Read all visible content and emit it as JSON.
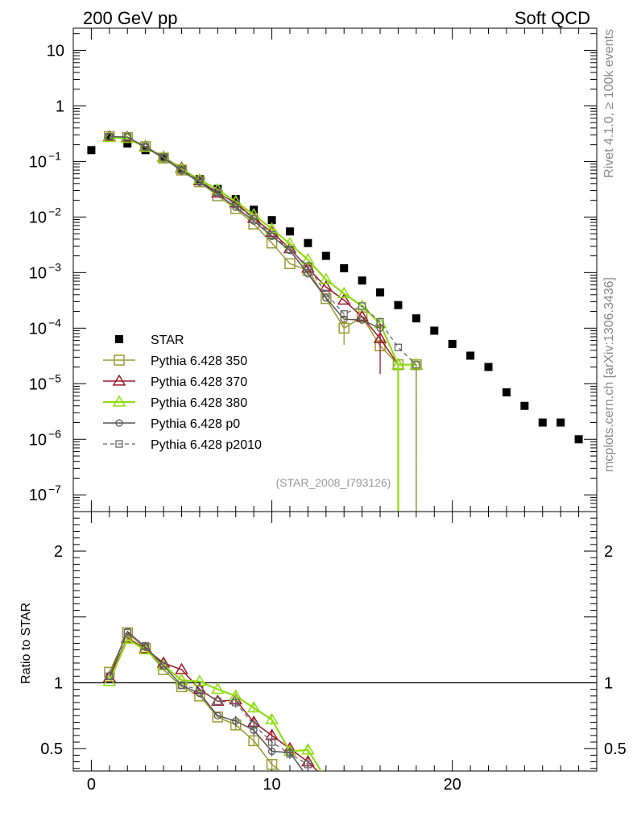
{
  "header": {
    "left": "200 GeV pp",
    "right": "Soft QCD"
  },
  "side": {
    "rivet": "Rivet 4.1.0, ≥ 100k events",
    "mcplots": "mcplots.cern.ch [arXiv:1306.3436]"
  },
  "analysis_tag": "(STAR_2008_I793126)",
  "colors": {
    "star": "#000000",
    "p350": "#9a9a33",
    "p370": "#a0182c",
    "p380": "#8fdc10",
    "p0": "#555555",
    "p2010": "#666666"
  },
  "chart_data": [
    {
      "type": "scatter",
      "panel": "main",
      "title": "",
      "xlabel": "",
      "ylabel": "",
      "xlim": [
        -1,
        28
      ],
      "ylim": [
        5e-08,
        25
      ],
      "yscale": "log",
      "y_ticks": [
        {
          "v": 10,
          "label": "10"
        },
        {
          "v": 1,
          "label": "1"
        },
        {
          "v": 0.1,
          "label": "10",
          "exp": "−1"
        },
        {
          "v": 0.01,
          "label": "10",
          "exp": "−2"
        },
        {
          "v": 0.001,
          "label": "10",
          "exp": "−3"
        },
        {
          "v": 0.0001,
          "label": "10",
          "exp": "−4"
        },
        {
          "v": 1e-05,
          "label": "10",
          "exp": "−5"
        },
        {
          "v": 1e-06,
          "label": "10",
          "exp": "−6"
        },
        {
          "v": 1e-07,
          "label": "10",
          "exp": "−7"
        }
      ],
      "legend": [
        {
          "key": "star",
          "label": "STAR"
        },
        {
          "key": "p350",
          "label": "Pythia 6.428 350"
        },
        {
          "key": "p370",
          "label": "Pythia 6.428 370"
        },
        {
          "key": "p380",
          "label": "Pythia 6.428 380"
        },
        {
          "key": "p0",
          "label": "Pythia 6.428 p0"
        },
        {
          "key": "p2010",
          "label": "Pythia 6.428 p2010"
        }
      ],
      "series": [
        {
          "key": "star",
          "name": "STAR",
          "x": [
            0,
            1,
            2,
            3,
            4,
            5,
            6,
            7,
            8,
            9,
            10,
            11,
            12,
            13,
            14,
            15,
            16,
            17,
            18,
            19,
            20,
            21,
            22,
            23,
            24,
            25,
            26,
            27
          ],
          "y": [
            0.16,
            0.27,
            0.21,
            0.16,
            0.115,
            0.072,
            0.048,
            0.032,
            0.021,
            0.0135,
            0.0088,
            0.0055,
            0.0034,
            0.002,
            0.0012,
            0.00072,
            0.00044,
            0.00026,
            0.00015,
            9e-05,
            5.2e-05,
            3.2e-05,
            2e-05,
            7e-06,
            4e-06,
            2e-06,
            2e-06,
            1e-06
          ]
        },
        {
          "key": "p350",
          "name": "Pythia 6.428 350",
          "x": [
            1,
            2,
            3,
            4,
            5,
            6,
            7,
            8,
            9,
            10,
            11,
            12,
            13,
            14,
            15,
            16,
            17,
            18
          ],
          "y": [
            0.28,
            0.27,
            0.185,
            0.115,
            0.07,
            0.043,
            0.024,
            0.0142,
            0.0075,
            0.0034,
            0.00145,
            0.0011,
            0.00034,
            0.0001,
            0.00016,
            4.8e-05,
            2.2e-05,
            2.2e-05
          ]
        },
        {
          "key": "p370",
          "name": "Pythia 6.428 370",
          "x": [
            1,
            2,
            3,
            4,
            5,
            6,
            7,
            8,
            9,
            10,
            11,
            12,
            13,
            14,
            15,
            16,
            17,
            18
          ],
          "y": [
            0.28,
            0.27,
            0.185,
            0.12,
            0.076,
            0.045,
            0.027,
            0.018,
            0.0095,
            0.0053,
            0.0027,
            0.0012,
            0.00055,
            0.00032,
            0.00016,
            6.5e-05,
            2.2e-05,
            2.2e-05
          ]
        },
        {
          "key": "p380",
          "name": "Pythia 6.428 380",
          "x": [
            1,
            2,
            3,
            4,
            5,
            6,
            7,
            8,
            9,
            10,
            11,
            12,
            13,
            14,
            15,
            16,
            17,
            18
          ],
          "y": [
            0.27,
            0.26,
            0.18,
            0.118,
            0.073,
            0.047,
            0.031,
            0.019,
            0.011,
            0.0061,
            0.0033,
            0.0017,
            0.00075,
            0.00042,
            0.00025,
            0.00012,
            2.2e-05,
            2.2e-05
          ]
        },
        {
          "key": "p0",
          "name": "Pythia 6.428 p0",
          "x": [
            1,
            2,
            3,
            4,
            5,
            6,
            7,
            8,
            9,
            10,
            11,
            12,
            13,
            14,
            15,
            16
          ],
          "y": [
            0.28,
            0.275,
            0.18,
            0.115,
            0.068,
            0.042,
            0.026,
            0.015,
            0.0085,
            0.0045,
            0.0025,
            0.00095,
            0.00035,
            0.000145,
            0.00014,
            0.0001
          ]
        },
        {
          "key": "p2010",
          "name": "Pythia 6.428 p2010",
          "x": [
            1,
            2,
            3,
            4,
            5,
            6,
            7,
            8,
            9,
            10,
            11,
            12,
            13,
            14,
            15,
            16,
            17,
            18
          ],
          "y": [
            0.28,
            0.275,
            0.185,
            0.12,
            0.07,
            0.045,
            0.028,
            0.017,
            0.0092,
            0.0048,
            0.0026,
            0.0013,
            0.00042,
            0.00018,
            0.00025,
            0.00013,
            4.5e-05,
            2.2e-05
          ]
        }
      ]
    },
    {
      "type": "line",
      "panel": "ratio",
      "ylabel": "Ratio to STAR",
      "xlim": [
        -1,
        28
      ],
      "ylim": [
        0.33,
        2.3
      ],
      "y_ticks": [
        {
          "v": 2,
          "label": "2"
        },
        {
          "v": 1,
          "label": "1"
        },
        {
          "v": 0.5,
          "label": "0.5"
        }
      ],
      "x_ticks": [
        {
          "v": 0,
          "label": "0"
        },
        {
          "v": 10,
          "label": "10"
        },
        {
          "v": 20,
          "label": "20"
        }
      ],
      "reference": 1,
      "series": [
        {
          "key": "p350",
          "x": [
            1,
            2,
            3,
            4,
            5,
            6,
            7,
            8,
            9,
            10,
            11
          ],
          "y": [
            1.08,
            1.38,
            1.26,
            1.1,
            0.97,
            0.9,
            0.74,
            0.68,
            0.56,
            0.38,
            0.27
          ]
        },
        {
          "key": "p370",
          "x": [
            1,
            2,
            3,
            4,
            5,
            6,
            7,
            8,
            9,
            10,
            11,
            12,
            13
          ],
          "y": [
            1.04,
            1.34,
            1.26,
            1.15,
            1.1,
            0.95,
            0.86,
            0.87,
            0.7,
            0.6,
            0.5,
            0.4,
            0.27
          ]
        },
        {
          "key": "p380",
          "x": [
            1,
            2,
            3,
            4,
            5,
            6,
            7,
            8,
            9,
            10,
            11,
            12,
            13
          ],
          "y": [
            1.01,
            1.33,
            1.25,
            1.13,
            1.02,
            1.01,
            0.95,
            0.9,
            0.81,
            0.72,
            0.48,
            0.49,
            0.27
          ]
        },
        {
          "key": "p0",
          "x": [
            1,
            2,
            3,
            4,
            5,
            6,
            7,
            8,
            9,
            10,
            11,
            12
          ],
          "y": [
            1.05,
            1.39,
            1.27,
            1.13,
            0.98,
            0.92,
            0.75,
            0.71,
            0.64,
            0.48,
            0.47,
            0.28
          ]
        },
        {
          "key": "p2010",
          "x": [
            1,
            2,
            3,
            4,
            5,
            6,
            7,
            8,
            9,
            10,
            11,
            12
          ],
          "y": [
            1.05,
            1.38,
            1.28,
            1.13,
            0.98,
            0.95,
            0.86,
            0.85,
            0.68,
            0.55,
            0.46,
            0.38
          ]
        }
      ]
    }
  ]
}
